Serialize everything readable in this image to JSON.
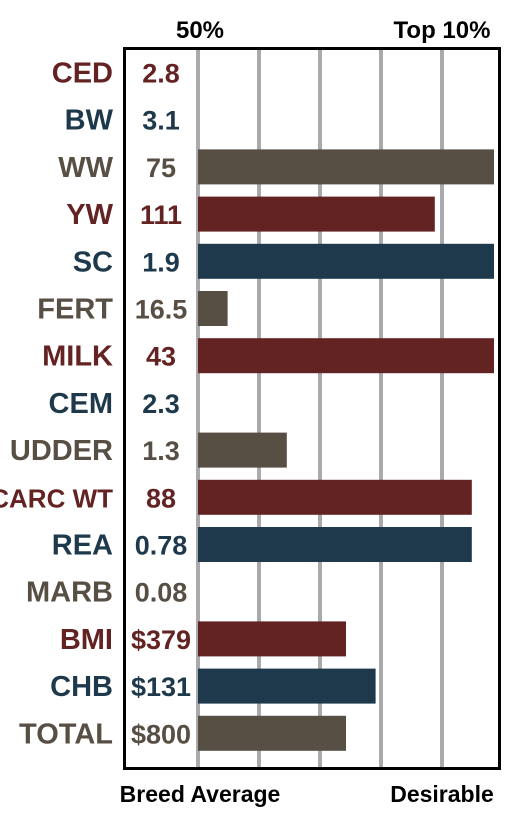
{
  "chart_data": {
    "type": "bar",
    "orientation": "horizontal",
    "header": {
      "left": "50%",
      "right": "Top 10%"
    },
    "footer": {
      "left": "Breed Average",
      "right": "Desirable"
    },
    "xlim": [
      50,
      10
    ],
    "grid": true,
    "colors": {
      "red": "#642323",
      "blue": "#1f394c",
      "brown": "#574e44",
      "grid": "#aaa9ad",
      "frame": "#000000"
    },
    "rows": [
      {
        "trait": "CED",
        "value": "2.8",
        "color": "red",
        "bar": null
      },
      {
        "trait": "BW",
        "value": "3.1",
        "color": "blue",
        "bar": null
      },
      {
        "trait": "WW",
        "value": "75",
        "color": "brown",
        "bar": 10
      },
      {
        "trait": "YW",
        "value": "111",
        "color": "red",
        "bar": 18
      },
      {
        "trait": "SC",
        "value": "1.9",
        "color": "blue",
        "bar": 10
      },
      {
        "trait": "FERT",
        "value": "16.5",
        "color": "brown",
        "bar": 46
      },
      {
        "trait": "MILK",
        "value": "43",
        "color": "red",
        "bar": 10
      },
      {
        "trait": "CEM",
        "value": "2.3",
        "color": "blue",
        "bar": null
      },
      {
        "trait": "UDDER",
        "value": "1.3",
        "color": "brown",
        "bar": 38
      },
      {
        "trait": "CARC WT",
        "value": "88",
        "color": "red",
        "bar": 13
      },
      {
        "trait": "REA",
        "value": "0.78",
        "color": "blue",
        "bar": 13
      },
      {
        "trait": "MARB",
        "value": "0.08",
        "color": "brown",
        "bar": null
      },
      {
        "trait": "BMI",
        "value": "$379",
        "color": "red",
        "bar": 30
      },
      {
        "trait": "CHB",
        "value": "$131",
        "color": "blue",
        "bar": 26
      },
      {
        "trait": "TOTAL",
        "value": "$800",
        "color": "brown",
        "bar": 30
      }
    ]
  }
}
